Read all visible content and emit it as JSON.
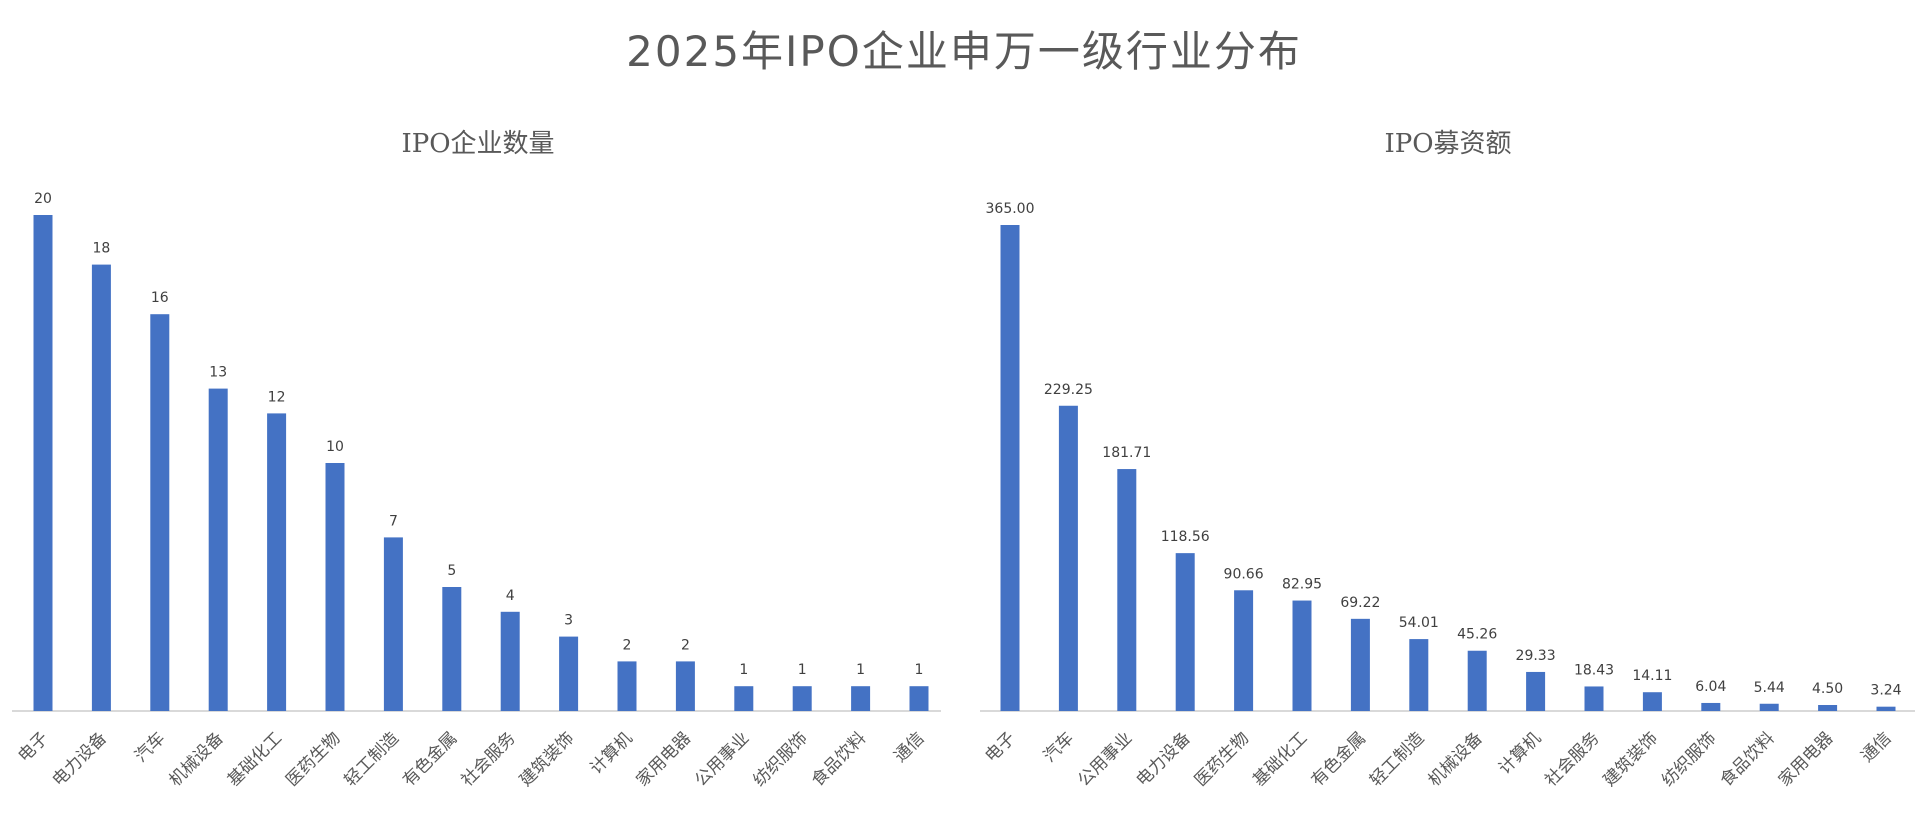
{
  "title": "2025年IPO企业申万一级行业分布",
  "colors": {
    "bar": "#4472C4",
    "axis": "#D9D9D9",
    "text": "#595959"
  },
  "chart_data": [
    {
      "type": "bar",
      "title": "IPO企业数量",
      "categories": [
        "电子",
        "电力设备",
        "汽车",
        "机械设备",
        "基础化工",
        "医药生物",
        "轻工制造",
        "有色金属",
        "社会服务",
        "建筑装饰",
        "计算机",
        "家用电器",
        "公用事业",
        "纺织服饰",
        "食品饮料",
        "通信"
      ],
      "values": [
        20,
        18,
        16,
        13,
        12,
        10,
        7,
        5,
        4,
        3,
        2,
        2,
        1,
        1,
        1,
        1
      ],
      "labels": [
        "20",
        "18",
        "16",
        "13",
        "12",
        "10",
        "7",
        "5",
        "4",
        "3",
        "2",
        "2",
        "1",
        "1",
        "1",
        "1"
      ],
      "ylim": [
        0,
        20
      ],
      "grid": false
    },
    {
      "type": "bar",
      "title": "IPO募资额",
      "categories": [
        "电子",
        "汽车",
        "公用事业",
        "电力设备",
        "医药生物",
        "基础化工",
        "有色金属",
        "轻工制造",
        "机械设备",
        "计算机",
        "社会服务",
        "建筑装饰",
        "纺织服饰",
        "食品饮料",
        "家用电器",
        "通信"
      ],
      "values": [
        365.0,
        229.25,
        181.71,
        118.56,
        90.66,
        82.95,
        69.22,
        54.01,
        45.26,
        29.33,
        18.43,
        14.11,
        6.04,
        5.44,
        4.5,
        3.24
      ],
      "labels": [
        "365.00",
        "229.25",
        "181.71",
        "118.56",
        "90.66",
        "82.95",
        "69.22",
        "54.01",
        "45.26",
        "29.33",
        "18.43",
        "14.11",
        "6.04",
        "5.44",
        "4.50",
        "3.24"
      ],
      "ylim": [
        0,
        365
      ],
      "grid": false
    }
  ]
}
